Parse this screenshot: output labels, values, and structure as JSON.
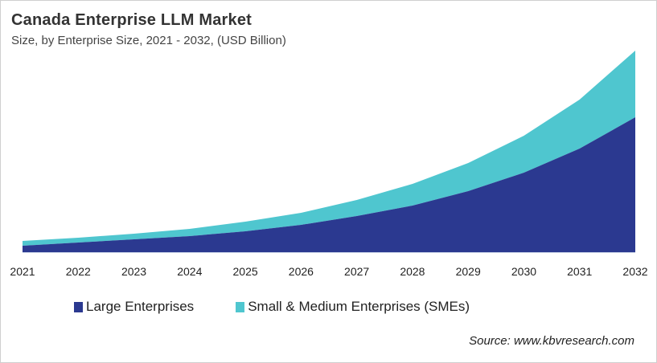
{
  "chart_data": {
    "type": "area",
    "stacked": true,
    "title": "Canada Enterprise LLM Market",
    "subtitle": "Size, by Enterprise Size, 2021 - 2032, (USD Billion)",
    "xlabel": "",
    "ylabel": "",
    "categories": [
      "2021",
      "2022",
      "2023",
      "2024",
      "2025",
      "2026",
      "2027",
      "2028",
      "2029",
      "2030",
      "2031",
      "2032"
    ],
    "series": [
      {
        "name": "Large Enterprises",
        "color": "#2b3990",
        "values": [
          8,
          12,
          16,
          20,
          26,
          34,
          45,
          58,
          76,
          99,
          129,
          168
        ]
      },
      {
        "name": "Small & Medium Enterprises (SMEs)",
        "color": "#4fc6cf",
        "values": [
          6,
          6,
          7,
          9,
          12,
          15,
          20,
          27,
          35,
          46,
          61,
          83
        ]
      }
    ],
    "ylim": [
      0,
      260
    ],
    "y_axis_visible": false,
    "grid": false,
    "legend_position": "bottom"
  },
  "source": "Source: www.kbvresearch.com"
}
